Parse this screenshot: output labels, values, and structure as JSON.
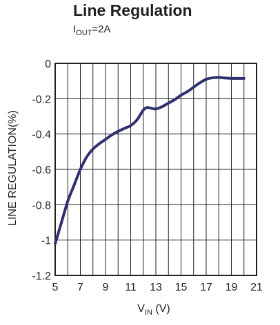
{
  "chart_data": {
    "type": "line",
    "title": "Line Regulation",
    "subtitle": {
      "base": "I",
      "sub": "OUT",
      "rest": "=2A"
    },
    "xlabel": {
      "base": "V",
      "sub": "IN",
      "rest": " (V)"
    },
    "ylabel": "LINE REGULATION(%)",
    "xlim": [
      5,
      21
    ],
    "ylim": [
      -1.2,
      0
    ],
    "xticks": [
      5,
      7,
      9,
      11,
      13,
      15,
      17,
      19,
      21
    ],
    "xtick_labels": [
      "5",
      "7",
      "9",
      "11",
      "13",
      "15",
      "17",
      "19",
      "21"
    ],
    "yticks": [
      0,
      -0.2,
      -0.4,
      -0.6,
      -0.8,
      -1,
      -1.2
    ],
    "ytick_labels": [
      "0",
      "-0.2",
      "-0.4",
      "-0.6",
      "-0.8",
      "-1",
      "-1.2"
    ],
    "x_grid": [
      5,
      6,
      7,
      8,
      9,
      10,
      11,
      12,
      13,
      14,
      15,
      16,
      17,
      18,
      19,
      20,
      21
    ],
    "y_grid": [
      0,
      -0.2,
      -0.4,
      -0.6,
      -0.8,
      -1,
      -1.2
    ],
    "grid": true,
    "line_color": "#2e3070",
    "series": [
      {
        "x": [
          5,
          5.5,
          6,
          6.5,
          7,
          7.5,
          8,
          8.5,
          9,
          9.5,
          10,
          10.5,
          11,
          11.5,
          12,
          12.3,
          12.7,
          13,
          13.5,
          14,
          14.5,
          15,
          15.5,
          16,
          16.5,
          17,
          17.5,
          18,
          18.5,
          19,
          19.5,
          20
        ],
        "y": [
          -1.02,
          -0.9,
          -0.78,
          -0.69,
          -0.6,
          -0.53,
          -0.485,
          -0.455,
          -0.43,
          -0.405,
          -0.385,
          -0.368,
          -0.352,
          -0.32,
          -0.265,
          -0.25,
          -0.255,
          -0.258,
          -0.245,
          -0.225,
          -0.205,
          -0.18,
          -0.16,
          -0.135,
          -0.11,
          -0.09,
          -0.082,
          -0.08,
          -0.083,
          -0.085,
          -0.085,
          -0.085
        ]
      }
    ]
  }
}
